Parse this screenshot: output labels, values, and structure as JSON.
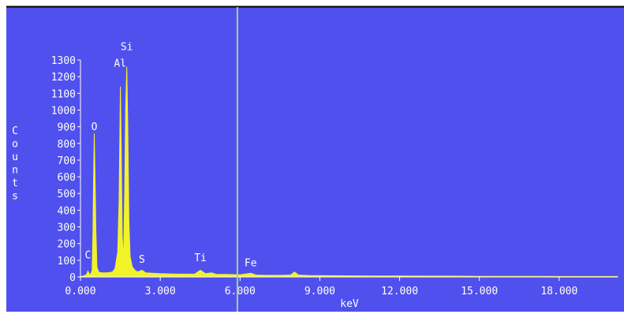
{
  "colors": {
    "background": "#5050ee",
    "spectrum": "#f2f229",
    "axes": "#ffffff",
    "text": "#ffffff",
    "cursor": "#a7d48a",
    "frame_top": "#000000"
  },
  "chart_data": {
    "type": "area",
    "title": "",
    "xlabel": "keV",
    "ylabel": "Counts",
    "xlim": [
      0,
      20.2
    ],
    "ylim": [
      0,
      1300
    ],
    "grid": false,
    "x_ticks": [
      {
        "value": 0,
        "label": "0.000"
      },
      {
        "value": 3,
        "label": "3.000"
      },
      {
        "value": 6,
        "label": "6.000"
      },
      {
        "value": 9,
        "label": "9.000"
      },
      {
        "value": 12,
        "label": "12.000"
      },
      {
        "value": 15,
        "label": "15.000"
      },
      {
        "value": 18,
        "label": "18.000"
      }
    ],
    "y_ticks": [
      {
        "value": 0,
        "label": "0"
      },
      {
        "value": 100,
        "label": "100"
      },
      {
        "value": 200,
        "label": "200"
      },
      {
        "value": 300,
        "label": "300"
      },
      {
        "value": 400,
        "label": "400"
      },
      {
        "value": 500,
        "label": "500"
      },
      {
        "value": 600,
        "label": "600"
      },
      {
        "value": 700,
        "label": "700"
      },
      {
        "value": 800,
        "label": "800"
      },
      {
        "value": 900,
        "label": "900"
      },
      {
        "value": 1000,
        "label": "1000"
      },
      {
        "value": 1100,
        "label": "1100"
      },
      {
        "value": 1200,
        "label": "1200"
      },
      {
        "value": 1300,
        "label": "1300"
      }
    ],
    "series": [
      {
        "values": [
          [
            0.0,
            3
          ],
          [
            0.1,
            5
          ],
          [
            0.2,
            12
          ],
          [
            0.25,
            20
          ],
          [
            0.28,
            35
          ],
          [
            0.33,
            20
          ],
          [
            0.38,
            12
          ],
          [
            0.44,
            40
          ],
          [
            0.47,
            270
          ],
          [
            0.49,
            560
          ],
          [
            0.52,
            860
          ],
          [
            0.55,
            600
          ],
          [
            0.58,
            270
          ],
          [
            0.62,
            60
          ],
          [
            0.68,
            30
          ],
          [
            0.8,
            25
          ],
          [
            1.0,
            25
          ],
          [
            1.2,
            30
          ],
          [
            1.3,
            50
          ],
          [
            1.4,
            150
          ],
          [
            1.45,
            450
          ],
          [
            1.48,
            850
          ],
          [
            1.5,
            1140
          ],
          [
            1.53,
            800
          ],
          [
            1.57,
            250
          ],
          [
            1.62,
            100
          ],
          [
            1.66,
            500
          ],
          [
            1.7,
            1010
          ],
          [
            1.74,
            1260
          ],
          [
            1.78,
            900
          ],
          [
            1.82,
            330
          ],
          [
            1.87,
            120
          ],
          [
            1.95,
            60
          ],
          [
            2.05,
            40
          ],
          [
            2.15,
            30
          ],
          [
            2.31,
            40
          ],
          [
            2.45,
            25
          ],
          [
            2.7,
            22
          ],
          [
            3.0,
            20
          ],
          [
            3.5,
            18
          ],
          [
            4.0,
            17
          ],
          [
            4.3,
            18
          ],
          [
            4.51,
            40
          ],
          [
            4.7,
            20
          ],
          [
            4.93,
            25
          ],
          [
            5.1,
            16
          ],
          [
            5.5,
            15
          ],
          [
            6.0,
            13
          ],
          [
            6.4,
            22
          ],
          [
            6.6,
            12
          ],
          [
            7.0,
            10
          ],
          [
            7.5,
            10
          ],
          [
            7.9,
            12
          ],
          [
            8.05,
            30
          ],
          [
            8.2,
            12
          ],
          [
            8.6,
            9
          ],
          [
            9.0,
            8
          ],
          [
            10.0,
            7
          ],
          [
            11.0,
            6
          ],
          [
            12.0,
            6
          ],
          [
            13.0,
            5
          ],
          [
            14.0,
            5
          ],
          [
            15.0,
            4
          ],
          [
            16.0,
            4
          ],
          [
            17.0,
            4
          ],
          [
            18.0,
            3
          ],
          [
            19.0,
            3
          ],
          [
            20.2,
            3
          ]
        ]
      }
    ],
    "annotations": [
      {
        "label": "C",
        "x": 0.28,
        "y": 110
      },
      {
        "label": "O",
        "x": 0.52,
        "y": 880
      },
      {
        "label": "Al",
        "x": 1.49,
        "y": 1260
      },
      {
        "label": "Si",
        "x": 1.74,
        "y": 1360
      },
      {
        "label": "S",
        "x": 2.31,
        "y": 85
      },
      {
        "label": "Ti",
        "x": 4.51,
        "y": 95
      },
      {
        "label": "Fe",
        "x": 6.4,
        "y": 65
      }
    ],
    "cursor_x": 5.9
  }
}
